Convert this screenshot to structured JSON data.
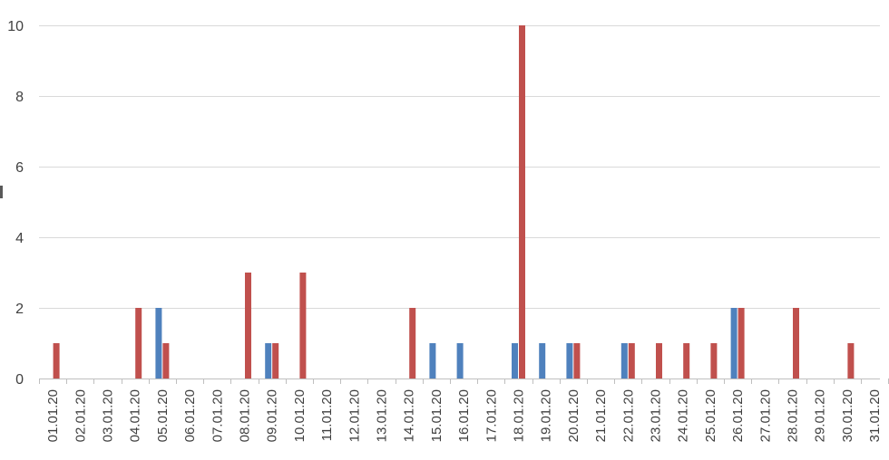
{
  "chart_data": {
    "type": "bar",
    "title": "",
    "xlabel": "",
    "ylabel": "",
    "ylim": [
      0,
      10
    ],
    "yticks": [
      0,
      2,
      4,
      6,
      8,
      10
    ],
    "grid": true,
    "legend": "none",
    "categories": [
      "01.01.20",
      "02.01.20",
      "03.01.20",
      "04.01.20",
      "05.01.20",
      "06.01.20",
      "07.01.20",
      "08.01.20",
      "09.01.20",
      "10.01.20",
      "11.01.20",
      "12.01.20",
      "13.01.20",
      "14.01.20",
      "15.01.20",
      "16.01.20",
      "17.01.20",
      "18.01.20",
      "19.01.20",
      "20.01.20",
      "21.01.20",
      "22.01.20",
      "23.01.20",
      "24.01.20",
      "25.01.20",
      "26.01.20",
      "27.01.20",
      "28.01.20",
      "29.01.20",
      "30.01.20",
      "31.01.20"
    ],
    "series": [
      {
        "color": "#4f81bd",
        "values": [
          0,
          0,
          0,
          0,
          2,
          0,
          0,
          0,
          1,
          0,
          0,
          0,
          0,
          0,
          1,
          1,
          0,
          1,
          1,
          1,
          0,
          1,
          0,
          0,
          0,
          2,
          0,
          0,
          0,
          0,
          0
        ]
      },
      {
        "color": "#c0504d",
        "values": [
          1,
          0,
          0,
          2,
          1,
          0,
          0,
          3,
          1,
          3,
          0,
          0,
          0,
          2,
          0,
          0,
          0,
          10,
          0,
          1,
          0,
          1,
          1,
          1,
          1,
          2,
          0,
          2,
          0,
          1,
          0
        ]
      }
    ]
  }
}
